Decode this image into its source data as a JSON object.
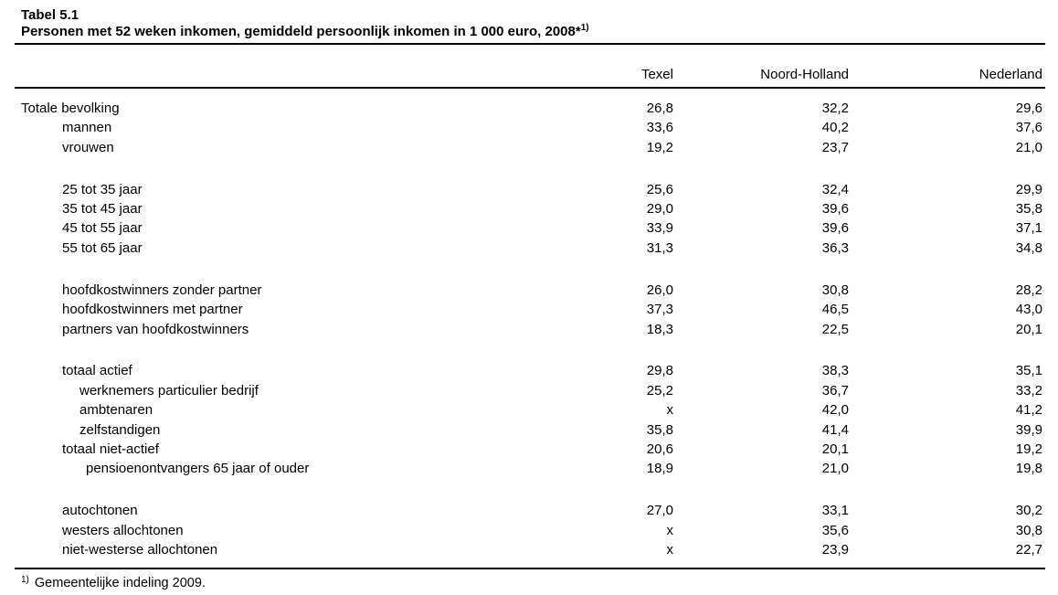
{
  "page": {
    "table_number": "Tabel 5.1",
    "title": "Personen met 52 weken inkomen, gemiddeld persoonlijk inkomen in 1 000 euro, 2008*",
    "title_footnote_marker": "1)",
    "footnote_marker": "1)",
    "footnote_text": "Gemeentelijke indeling 2009."
  },
  "table": {
    "columns": [
      "Texel",
      "Noord-Holland",
      "Nederland"
    ],
    "rows": [
      {
        "label": "Totale bevolking",
        "indent": 0,
        "values": [
          "26,8",
          "32,2",
          "29,6"
        ]
      },
      {
        "label": "mannen",
        "indent": 1,
        "values": [
          "33,6",
          "40,2",
          "37,6"
        ]
      },
      {
        "label": "vrouwen",
        "indent": 1,
        "values": [
          "19,2",
          "23,7",
          "21,0"
        ]
      },
      {
        "spacer": true
      },
      {
        "label": "25 tot 35 jaar",
        "indent": 1,
        "values": [
          "25,6",
          "32,4",
          "29,9"
        ]
      },
      {
        "label": "35 tot 45 jaar",
        "indent": 1,
        "values": [
          "29,0",
          "39,6",
          "35,8"
        ]
      },
      {
        "label": "45 tot 55 jaar",
        "indent": 1,
        "values": [
          "33,9",
          "39,6",
          "37,1"
        ]
      },
      {
        "label": "55 tot 65 jaar",
        "indent": 1,
        "values": [
          "31,3",
          "36,3",
          "34,8"
        ]
      },
      {
        "spacer": true
      },
      {
        "label": "hoofdkostwinners zonder partner",
        "indent": 1,
        "values": [
          "26,0",
          "30,8",
          "28,2"
        ]
      },
      {
        "label": "hoofdkostwinners met partner",
        "indent": 1,
        "values": [
          "37,3",
          "46,5",
          "43,0"
        ]
      },
      {
        "label": "partners van hoofdkostwinners",
        "indent": 1,
        "values": [
          "18,3",
          "22,5",
          "20,1"
        ]
      },
      {
        "spacer": true
      },
      {
        "label": "totaal actief",
        "indent": 1,
        "values": [
          "29,8",
          "38,3",
          "35,1"
        ]
      },
      {
        "label": "werknemers particulier bedrijf",
        "indent": 2,
        "values": [
          "25,2",
          "36,7",
          "33,2"
        ]
      },
      {
        "label": "ambtenaren",
        "indent": 2,
        "values": [
          "x",
          "42,0",
          "41,2"
        ]
      },
      {
        "label": "zelfstandigen",
        "indent": 2,
        "values": [
          "35,8",
          "41,4",
          "39,9"
        ]
      },
      {
        "label": "totaal niet-actief",
        "indent": 1,
        "values": [
          "20,6",
          "20,1",
          "19,2"
        ]
      },
      {
        "label": "pensioenontvangers 65 jaar of ouder",
        "indent": 3,
        "values": [
          "18,9",
          "21,0",
          "19,8"
        ]
      },
      {
        "spacer": true
      },
      {
        "label": "autochtonen",
        "indent": 1,
        "values": [
          "27,0",
          "33,1",
          "30,2"
        ]
      },
      {
        "label": "westers allochtonen",
        "indent": 1,
        "values": [
          "x",
          "35,6",
          "30,8"
        ]
      },
      {
        "label": "niet-westerse allochtonen",
        "indent": 1,
        "values": [
          "x",
          "23,9",
          "22,7"
        ]
      }
    ]
  }
}
